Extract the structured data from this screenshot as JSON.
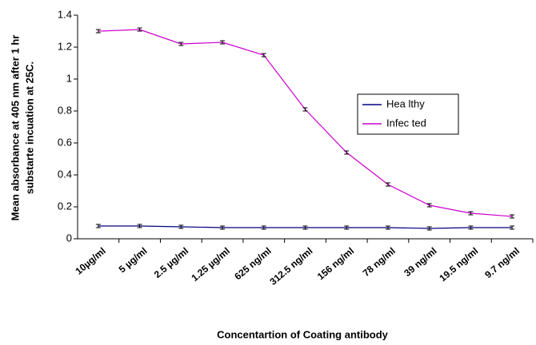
{
  "chart_data": {
    "type": "line",
    "y_label": [
      "Mean absorbance at 405 nm  after 1 hr",
      "substarte incuation at  25C."
    ],
    "x_label": "Concentartion of Coating antibody",
    "categories": [
      "10µg/ml",
      "5 µg/ml",
      "2.5 µg/ml",
      "1.25 µg/ml",
      "625 ng/ml",
      "312.5 ng/ml",
      "156 ng/ml",
      "78 ng/ml",
      "39 ng/ml",
      "19.5 ng/ml",
      "9.7 ng/ml"
    ],
    "series": [
      {
        "name": "Hea lthy",
        "color": "#000080",
        "values": [
          0.08,
          0.08,
          0.075,
          0.07,
          0.07,
          0.07,
          0.07,
          0.07,
          0.065,
          0.07,
          0.07
        ],
        "errors": [
          0.01,
          0.01,
          0.01,
          0.01,
          0.01,
          0.01,
          0.01,
          0.01,
          0.01,
          0.01,
          0.01
        ]
      },
      {
        "name": "Infec ted",
        "color": "#cc00cc",
        "values": [
          1.3,
          1.31,
          1.22,
          1.23,
          1.15,
          0.81,
          0.54,
          0.34,
          0.21,
          0.16,
          0.14
        ],
        "errors": [
          0.01,
          0.01,
          0.01,
          0.01,
          0.01,
          0.01,
          0.01,
          0.01,
          0.01,
          0.01,
          0.01
        ]
      }
    ],
    "ylim": [
      0,
      1.4
    ],
    "yticks": [
      0,
      0.2,
      0.4,
      0.6,
      0.8,
      1,
      1.2,
      1.4
    ],
    "legend": "right"
  }
}
